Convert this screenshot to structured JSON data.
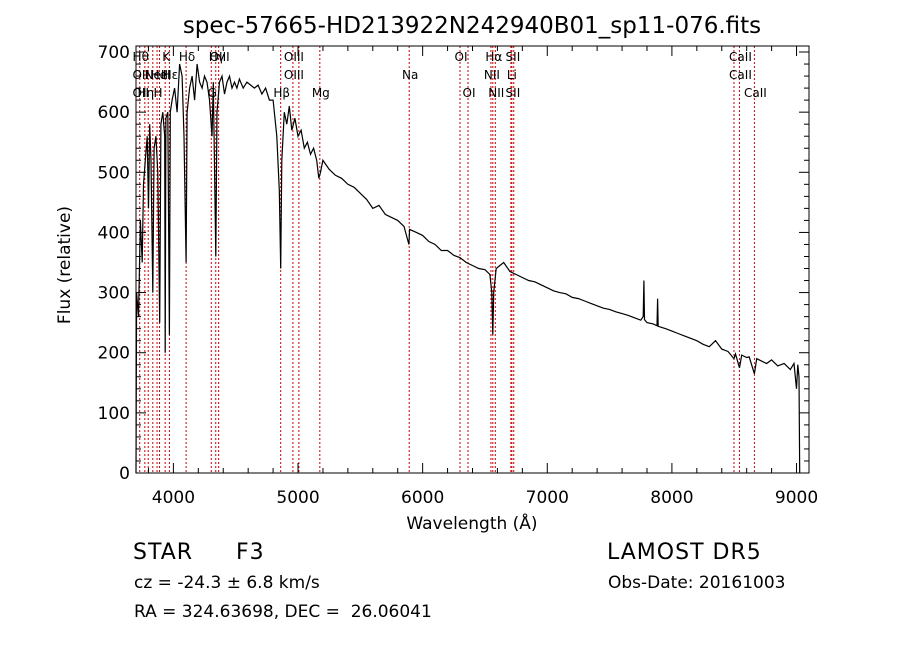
{
  "chart_data": {
    "type": "line",
    "title": "spec-57665-HD213922N242940B01_sp11-076.fits",
    "xlabel": "Wavelength (Å)",
    "ylabel": "Flux (relative)",
    "xlim": [
      3700,
      9100
    ],
    "ylim": [
      0,
      710
    ],
    "xticks": [
      4000,
      5000,
      6000,
      7000,
      8000,
      9000
    ],
    "yticks": [
      0,
      100,
      200,
      300,
      400,
      500,
      600,
      700
    ],
    "grid": false,
    "series": [
      {
        "points": [
          [
            3700,
            0
          ],
          [
            3705,
            300
          ],
          [
            3720,
            260
          ],
          [
            3735,
            420
          ],
          [
            3750,
            350
          ],
          [
            3760,
            480
          ],
          [
            3775,
            520
          ],
          [
            3790,
            560
          ],
          [
            3800,
            440
          ],
          [
            3810,
            580
          ],
          [
            3820,
            520
          ],
          [
            3835,
            300
          ],
          [
            3845,
            540
          ],
          [
            3860,
            560
          ],
          [
            3875,
            500
          ],
          [
            3890,
            250
          ],
          [
            3900,
            580
          ],
          [
            3915,
            600
          ],
          [
            3930,
            560
          ],
          [
            3934,
            200
          ],
          [
            3940,
            590
          ],
          [
            3955,
            600
          ],
          [
            3968,
            230
          ],
          [
            3975,
            600
          ],
          [
            3990,
            620
          ],
          [
            4010,
            640
          ],
          [
            4030,
            600
          ],
          [
            4050,
            680
          ],
          [
            4070,
            660
          ],
          [
            4085,
            560
          ],
          [
            4102,
            350
          ],
          [
            4110,
            600
          ],
          [
            4130,
            640
          ],
          [
            4150,
            660
          ],
          [
            4170,
            620
          ],
          [
            4190,
            680
          ],
          [
            4210,
            650
          ],
          [
            4230,
            640
          ],
          [
            4250,
            660
          ],
          [
            4270,
            650
          ],
          [
            4290,
            620
          ],
          [
            4310,
            560
          ],
          [
            4320,
            650
          ],
          [
            4340,
            360
          ],
          [
            4350,
            600
          ],
          [
            4370,
            650
          ],
          [
            4390,
            660
          ],
          [
            4410,
            630
          ],
          [
            4430,
            650
          ],
          [
            4450,
            660
          ],
          [
            4470,
            640
          ],
          [
            4490,
            650
          ],
          [
            4510,
            640
          ],
          [
            4530,
            655
          ],
          [
            4560,
            640
          ],
          [
            4590,
            650
          ],
          [
            4620,
            645
          ],
          [
            4650,
            640
          ],
          [
            4680,
            645
          ],
          [
            4710,
            630
          ],
          [
            4740,
            640
          ],
          [
            4770,
            620
          ],
          [
            4800,
            620
          ],
          [
            4830,
            560
          ],
          [
            4850,
            470
          ],
          [
            4861,
            340
          ],
          [
            4870,
            520
          ],
          [
            4890,
            600
          ],
          [
            4910,
            580
          ],
          [
            4930,
            610
          ],
          [
            4950,
            570
          ],
          [
            4975,
            590
          ],
          [
            5000,
            560
          ],
          [
            5025,
            570
          ],
          [
            5050,
            540
          ],
          [
            5075,
            550
          ],
          [
            5100,
            530
          ],
          [
            5125,
            540
          ],
          [
            5150,
            520
          ],
          [
            5167,
            490
          ],
          [
            5180,
            500
          ],
          [
            5200,
            520
          ],
          [
            5250,
            505
          ],
          [
            5300,
            495
          ],
          [
            5350,
            490
          ],
          [
            5400,
            480
          ],
          [
            5450,
            475
          ],
          [
            5500,
            465
          ],
          [
            5550,
            455
          ],
          [
            5600,
            440
          ],
          [
            5650,
            445
          ],
          [
            5700,
            430
          ],
          [
            5750,
            425
          ],
          [
            5800,
            420
          ],
          [
            5850,
            410
          ],
          [
            5890,
            380
          ],
          [
            5895,
            405
          ],
          [
            5950,
            400
          ],
          [
            6000,
            395
          ],
          [
            6050,
            385
          ],
          [
            6100,
            380
          ],
          [
            6150,
            370
          ],
          [
            6200,
            370
          ],
          [
            6250,
            362
          ],
          [
            6300,
            358
          ],
          [
            6350,
            350
          ],
          [
            6400,
            345
          ],
          [
            6450,
            340
          ],
          [
            6500,
            338
          ],
          [
            6540,
            330
          ],
          [
            6555,
            300
          ],
          [
            6563,
            230
          ],
          [
            6570,
            300
          ],
          [
            6590,
            340
          ],
          [
            6620,
            345
          ],
          [
            6650,
            350
          ],
          [
            6700,
            335
          ],
          [
            6750,
            330
          ],
          [
            6800,
            325
          ],
          [
            6850,
            320
          ],
          [
            6900,
            318
          ],
          [
            6950,
            313
          ],
          [
            7000,
            308
          ],
          [
            7050,
            303
          ],
          [
            7100,
            300
          ],
          [
            7150,
            298
          ],
          [
            7200,
            292
          ],
          [
            7250,
            290
          ],
          [
            7300,
            286
          ],
          [
            7350,
            282
          ],
          [
            7400,
            278
          ],
          [
            7450,
            274
          ],
          [
            7500,
            272
          ],
          [
            7550,
            268
          ],
          [
            7600,
            265
          ],
          [
            7650,
            262
          ],
          [
            7700,
            258
          ],
          [
            7750,
            254
          ],
          [
            7770,
            260
          ],
          [
            7775,
            320
          ],
          [
            7780,
            255
          ],
          [
            7800,
            250
          ],
          [
            7850,
            248
          ],
          [
            7880,
            245
          ],
          [
            7885,
            290
          ],
          [
            7890,
            244
          ],
          [
            7950,
            240
          ],
          [
            8000,
            236
          ],
          [
            8050,
            232
          ],
          [
            8100,
            228
          ],
          [
            8150,
            224
          ],
          [
            8200,
            220
          ],
          [
            8250,
            214
          ],
          [
            8300,
            210
          ],
          [
            8350,
            220
          ],
          [
            8400,
            206
          ],
          [
            8450,
            202
          ],
          [
            8498,
            190
          ],
          [
            8510,
            198
          ],
          [
            8542,
            175
          ],
          [
            8560,
            196
          ],
          [
            8600,
            192
          ],
          [
            8620,
            193
          ],
          [
            8662,
            165
          ],
          [
            8680,
            190
          ],
          [
            8720,
            186
          ],
          [
            8760,
            182
          ],
          [
            8800,
            188
          ],
          [
            8850,
            178
          ],
          [
            8900,
            182
          ],
          [
            8950,
            172
          ],
          [
            8980,
            182
          ],
          [
            9000,
            140
          ],
          [
            9010,
            180
          ],
          [
            9020,
            160
          ],
          [
            9025,
            0
          ]
        ]
      }
    ],
    "lines": [
      {
        "x": 3730,
        "labels": [
          "Hθ",
          "OII",
          "OII"
        ]
      },
      {
        "x": 3771,
        "labels": [
          "",
          "",
          "Hη"
        ]
      },
      {
        "x": 3798,
        "labels": [
          "",
          "",
          ""
        ]
      },
      {
        "x": 3835,
        "labels": [
          "",
          "",
          ""
        ]
      },
      {
        "x": 3869,
        "labels": [
          "",
          "NeIII",
          "H"
        ]
      },
      {
        "x": 3889,
        "labels": [
          "",
          "HeI",
          ""
        ]
      },
      {
        "x": 3934,
        "labels": [
          "K",
          "",
          ""
        ]
      },
      {
        "x": 3968,
        "labels": [
          "",
          "Hε",
          ""
        ]
      },
      {
        "x": 4102,
        "labels": [
          "Hδ",
          "",
          ""
        ]
      },
      {
        "x": 4304,
        "labels": [
          "",
          "",
          "G"
        ]
      },
      {
        "x": 4340,
        "labels": [
          "Hγ",
          "",
          ""
        ]
      },
      {
        "x": 4363,
        "labels": [
          "OIII",
          "",
          ""
        ]
      },
      {
        "x": 4861,
        "labels": [
          "",
          "",
          "Hβ"
        ]
      },
      {
        "x": 4959,
        "labels": [
          "OIII",
          "OIII",
          ""
        ]
      },
      {
        "x": 5007,
        "labels": [
          "",
          "",
          ""
        ]
      },
      {
        "x": 5175,
        "labels": [
          "",
          "",
          "Mg"
        ]
      },
      {
        "x": 5892,
        "labels": [
          "",
          "Na",
          ""
        ]
      },
      {
        "x": 6300,
        "labels": [
          "OI",
          "",
          ""
        ]
      },
      {
        "x": 6364,
        "labels": [
          "",
          "",
          "OI"
        ]
      },
      {
        "x": 6548,
        "labels": [
          "",
          "NII",
          ""
        ]
      },
      {
        "x": 6563,
        "labels": [
          "Hα",
          "",
          ""
        ]
      },
      {
        "x": 6583,
        "labels": [
          "",
          "",
          "NII"
        ]
      },
      {
        "x": 6708,
        "labels": [
          "",
          "Li",
          ""
        ]
      },
      {
        "x": 6716,
        "labels": [
          "SII",
          "",
          "SII"
        ]
      },
      {
        "x": 6731,
        "labels": [
          "",
          "",
          ""
        ]
      },
      {
        "x": 8498,
        "labels": [
          "",
          "",
          ""
        ]
      },
      {
        "x": 8542,
        "labels": [
          "CaII",
          "CaII",
          ""
        ]
      },
      {
        "x": 8662,
        "labels": [
          "",
          "",
          "CaII"
        ]
      }
    ]
  },
  "info": {
    "class": "STAR",
    "subclass": "F3",
    "survey": "LAMOST DR5",
    "cz": "cz = -24.3 ± 6.8 km/s",
    "obs_date": "Obs-Date: 20161003",
    "radec": "RA = 324.63698, DEC =  26.06041"
  }
}
